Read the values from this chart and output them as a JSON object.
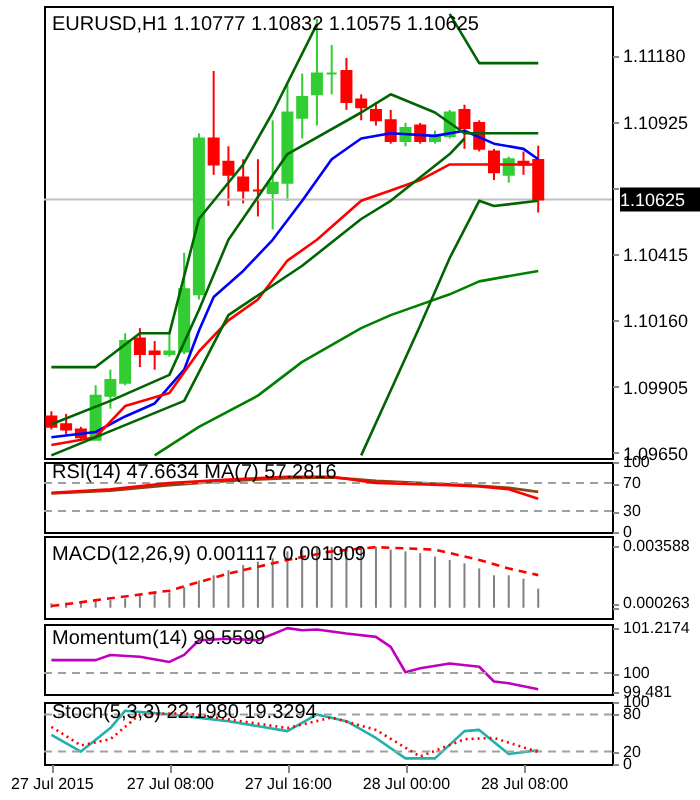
{
  "chart_data": [
    {
      "type": "candlestick",
      "title": "EURUSD,H1  1.10777 1.10832 1.10575 1.10625",
      "x": [
        "2015-07-27T00:00",
        "2015-07-27T01:00",
        "2015-07-27T02:00",
        "2015-07-27T03:00",
        "2015-07-27T04:00",
        "2015-07-27T05:00",
        "2015-07-27T06:00",
        "2015-07-27T07:00",
        "2015-07-27T08:00",
        "2015-07-27T09:00",
        "2015-07-27T10:00",
        "2015-07-27T11:00",
        "2015-07-27T12:00",
        "2015-07-27T13:00",
        "2015-07-27T14:00",
        "2015-07-27T15:00",
        "2015-07-27T16:00",
        "2015-07-27T17:00",
        "2015-07-27T18:00",
        "2015-07-27T19:00",
        "2015-07-27T20:00",
        "2015-07-27T21:00",
        "2015-07-27T22:00",
        "2015-07-27T23:00",
        "2015-07-28T00:00",
        "2015-07-28T01:00",
        "2015-07-28T02:00",
        "2015-07-28T03:00",
        "2015-07-28T04:00",
        "2015-07-28T05:00",
        "2015-07-28T06:00",
        "2015-07-28T07:00",
        "2015-07-28T08:00",
        "2015-07-28T09:00"
      ],
      "ohlc": [
        [
          1.0979,
          1.0981,
          1.0974,
          1.0975
        ],
        [
          1.0976,
          1.098,
          1.0972,
          1.0974
        ],
        [
          1.0974,
          1.0975,
          1.097,
          1.0971
        ],
        [
          1.097,
          1.0991,
          1.097,
          1.0987
        ],
        [
          1.0987,
          1.0997,
          1.0982,
          1.0993
        ],
        [
          1.0992,
          1.1011,
          1.0991,
          1.1008
        ],
        [
          1.1009,
          1.1013,
          1.0998,
          1.1003
        ],
        [
          1.1004,
          1.1008,
          1.0997,
          1.1003
        ],
        [
          1.1003,
          1.1011,
          1.1002,
          1.1004
        ],
        [
          1.1004,
          1.1042,
          1.1003,
          1.1028
        ],
        [
          1.1026,
          1.1088,
          1.1024,
          1.1086
        ],
        [
          1.1086,
          1.1112,
          1.1072,
          1.1076
        ],
        [
          1.1077,
          1.1083,
          1.106,
          1.1072
        ],
        [
          1.1071,
          1.1078,
          1.1061,
          1.1066
        ],
        [
          1.1066,
          1.1078,
          1.1056,
          1.1066
        ],
        [
          1.1065,
          1.1093,
          1.1051,
          1.1069
        ],
        [
          1.1069,
          1.1107,
          1.1062,
          1.1096
        ],
        [
          1.1094,
          1.1111,
          1.1086,
          1.1102
        ],
        [
          1.1103,
          1.1132,
          1.1091,
          1.1111
        ],
        [
          1.1111,
          1.1122,
          1.1103,
          1.1111
        ],
        [
          1.1112,
          1.1117,
          1.1097,
          1.11
        ],
        [
          1.1101,
          1.1103,
          1.1093,
          1.1098
        ],
        [
          1.1097,
          1.11,
          1.1091,
          1.1093
        ],
        [
          1.1093,
          1.1097,
          1.1084,
          1.1085
        ],
        [
          1.1085,
          1.1092,
          1.1083,
          1.109
        ],
        [
          1.1091,
          1.1092,
          1.1084,
          1.1085
        ],
        [
          1.1085,
          1.1089,
          1.1084,
          1.1087
        ],
        [
          1.1087,
          1.1097,
          1.1086,
          1.1096
        ],
        [
          1.1097,
          1.1099,
          1.1082,
          1.109
        ],
        [
          1.1092,
          1.1093,
          1.1081,
          1.1082
        ],
        [
          1.1081,
          1.1082,
          1.107,
          1.1073
        ],
        [
          1.1072,
          1.1079,
          1.1069,
          1.1078
        ],
        [
          1.1077,
          1.1081,
          1.1072,
          1.1076
        ],
        [
          1.10777,
          1.10832,
          1.10575,
          1.10625
        ]
      ],
      "colors": [
        "#ff0000",
        "#ff0000",
        "#ff0000",
        "#32cd32",
        "#32cd32",
        "#32cd32",
        "#ff0000",
        "#ff0000",
        "#32cd32",
        "#32cd32",
        "#32cd32",
        "#ff0000",
        "#ff0000",
        "#ff0000",
        "#ff0000",
        "#32cd32",
        "#32cd32",
        "#32cd32",
        "#32cd32",
        "#32cd32",
        "#ff0000",
        "#ff0000",
        "#ff0000",
        "#ff0000",
        "#32cd32",
        "#ff0000",
        "#32cd32",
        "#32cd32",
        "#ff0000",
        "#ff0000",
        "#ff0000",
        "#32cd32",
        "#ff0000",
        "#ff0000"
      ],
      "series": [
        {
          "type": "line",
          "color": "#0000ff",
          "x": [
            "2015-07-27T00:00",
            "2015-07-27T03:00",
            "2015-07-27T05:00",
            "2015-07-27T07:00",
            "2015-07-27T09:00",
            "2015-07-27T10:00",
            "2015-07-27T11:00",
            "2015-07-27T13:00",
            "2015-07-27T15:00",
            "2015-07-27T17:00",
            "2015-07-27T19:00",
            "2015-07-27T21:00",
            "2015-07-27T23:00",
            "2015-07-28T02:00",
            "2015-07-28T04:00",
            "2015-07-28T06:00",
            "2015-07-28T08:00",
            "2015-07-28T09:00"
          ],
          "values": [
            1.0971,
            1.0973,
            1.0979,
            1.0984,
            1.0997,
            1.1012,
            1.1025,
            1.1035,
            1.1047,
            1.1062,
            1.1078,
            1.1086,
            1.1088,
            1.1087,
            1.1089,
            1.1084,
            1.1082,
            1.1078
          ]
        },
        {
          "type": "line",
          "color": "#ff0000",
          "x": [
            "2015-07-27T00:00",
            "2015-07-27T03:00",
            "2015-07-27T05:00",
            "2015-07-27T08:00",
            "2015-07-27T10:00",
            "2015-07-27T12:00",
            "2015-07-27T14:00",
            "2015-07-27T16:00",
            "2015-07-27T18:00",
            "2015-07-27T21:00",
            "2015-07-27T23:00",
            "2015-07-28T01:00",
            "2015-07-28T03:00",
            "2015-07-28T05:00",
            "2015-07-28T09:00"
          ],
          "values": [
            1.0968,
            1.0971,
            1.0983,
            1.0988,
            1.1004,
            1.1016,
            1.1024,
            1.1039,
            1.1047,
            1.1062,
            1.1066,
            1.107,
            1.1076,
            1.1076,
            1.1076
          ]
        },
        {
          "type": "line",
          "color": "#008000",
          "x": [
            "2015-07-27T07:00",
            "2015-07-27T10:00",
            "2015-07-27T14:00",
            "2015-07-27T17:00",
            "2015-07-27T21:00",
            "2015-07-27T23:00",
            "2015-07-28T03:00",
            "2015-07-28T05:00",
            "2015-07-28T09:00"
          ],
          "values": [
            1.0964,
            1.0975,
            1.0987,
            1.1,
            1.1013,
            1.1018,
            1.1026,
            1.1031,
            1.1035
          ]
        },
        {
          "type": "line",
          "color": "#006400",
          "x": [
            "2015-07-27T00:00",
            "2015-07-27T03:00",
            "2015-07-27T06:00",
            "2015-07-27T08:00",
            "2015-07-27T10:00",
            "2015-07-27T13:00",
            "2015-07-27T15:00",
            "2015-07-27T18:00"
          ],
          "values": [
            1.0998,
            1.0998,
            1.1011,
            1.1011,
            1.1055,
            1.1076,
            1.1096,
            1.113
          ]
        },
        {
          "type": "line",
          "color": "#006400",
          "x": [
            "2015-07-28T03:00",
            "2015-07-28T05:00",
            "2015-07-28T09:00"
          ],
          "values": [
            1.1134,
            1.1115,
            1.1115
          ]
        },
        {
          "type": "line",
          "color": "#006400",
          "x": [
            "2015-07-27T21:00",
            "2015-07-27T23:00",
            "2015-07-28T01:00",
            "2015-07-28T03:00",
            "2015-07-28T05:00",
            "2015-07-28T06:00",
            "2015-07-28T09:00"
          ],
          "values": [
            1.0964,
            1.0989,
            1.1014,
            1.104,
            1.1062,
            1.106,
            1.1062
          ]
        },
        {
          "type": "line",
          "color": "#006400",
          "x": [
            "2015-07-27T00:00",
            "2015-07-27T04:00",
            "2015-07-27T08:00",
            "2015-07-27T10:00",
            "2015-07-27T12:00",
            "2015-07-27T16:00",
            "2015-07-27T21:00",
            "2015-07-27T23:00",
            "2015-07-28T02:00",
            "2015-07-28T04:00",
            "2015-07-28T09:00"
          ],
          "values": [
            1.0976,
            1.0985,
            1.0995,
            1.102,
            1.1047,
            1.108,
            1.1096,
            1.1103,
            1.1096,
            1.1088,
            1.1088
          ]
        },
        {
          "type": "line",
          "color": "#006400",
          "x": [
            "2015-07-27T00:00",
            "2015-07-27T09:00",
            "2015-07-27T12:00",
            "2015-07-27T17:00",
            "2015-07-27T21:00",
            "2015-07-27T23:00",
            "2015-07-28T03:00",
            "2015-07-28T04:00"
          ],
          "values": [
            1.0964,
            1.0985,
            1.1018,
            1.1037,
            1.1055,
            1.1062,
            1.108,
            1.1086
          ]
        }
      ],
      "ref_lines": [
        {
          "axis": "y",
          "value": 1.10625,
          "label": "1.10625",
          "color": "#c0c0c0"
        }
      ],
      "xlim": [
        "2015-07-26T23:30",
        "2015-07-28T14:00"
      ],
      "ylim": [
        1.0963,
        1.1137
      ],
      "yticks": [
        {
          "value": 1.0965,
          "label": "1.09650"
        },
        {
          "value": 1.09905,
          "label": "1.09905"
        },
        {
          "value": 1.1016,
          "label": "1.10160"
        },
        {
          "value": 1.10415,
          "label": "1.10415"
        },
        {
          "value": 1.1067,
          "label": null
        },
        {
          "value": 1.10925,
          "label": "1.10925"
        },
        {
          "value": 1.1118,
          "label": "1.11180"
        }
      ],
      "tick_labels": "y"
    },
    {
      "type": "line",
      "title": "RSI(14) 47.6634 MA(7) 57.2816",
      "series": [
        {
          "color": "#8b4513",
          "x": [
            "2015-07-27T00:00",
            "2015-07-27T04:00",
            "2015-07-27T08:00",
            "2015-07-27T12:00",
            "2015-07-27T16:00",
            "2015-07-27T19:00",
            "2015-07-27T22:00",
            "2015-07-28T03:00",
            "2015-07-28T05:00",
            "2015-07-28T07:00",
            "2015-07-28T09:00"
          ],
          "values": [
            55,
            59,
            67,
            73,
            77,
            78,
            73,
            68,
            66,
            63,
            57.2816
          ]
        },
        {
          "color": "#ff0000",
          "x": [
            "2015-07-27T00:00",
            "2015-07-27T04:00",
            "2015-07-27T08:00",
            "2015-07-27T12:00",
            "2015-07-27T16:00",
            "2015-07-27T19:00",
            "2015-07-27T22:00",
            "2015-07-28T03:00",
            "2015-07-28T05:00",
            "2015-07-28T07:00",
            "2015-07-28T09:00"
          ],
          "values": [
            56,
            61,
            70,
            75,
            79,
            79,
            70,
            67,
            65,
            61,
            47.6634
          ]
        }
      ],
      "ref_lines": [
        {
          "axis": "y",
          "value": 70,
          "color": "#a0a0a0",
          "line_style": "dashed"
        },
        {
          "axis": "y",
          "value": 30,
          "color": "#a0a0a0",
          "line_style": "dashed"
        }
      ],
      "xlim": [
        "2015-07-26T23:30",
        "2015-07-28T14:00"
      ],
      "ylim": [
        0,
        100
      ],
      "yticks": [
        100,
        70,
        30,
        0
      ],
      "tick_labels": "y"
    },
    {
      "type": "bar",
      "title": "MACD(12,26,9) 0.001117 0.001909",
      "color": "#808080",
      "x": [
        "2015-07-27T00:00",
        "2015-07-27T01:00",
        "2015-07-27T02:00",
        "2015-07-27T03:00",
        "2015-07-27T04:00",
        "2015-07-27T05:00",
        "2015-07-27T06:00",
        "2015-07-27T07:00",
        "2015-07-27T08:00",
        "2015-07-27T09:00",
        "2015-07-27T10:00",
        "2015-07-27T11:00",
        "2015-07-27T12:00",
        "2015-07-27T13:00",
        "2015-07-27T14:00",
        "2015-07-27T15:00",
        "2015-07-27T16:00",
        "2015-07-27T17:00",
        "2015-07-27T18:00",
        "2015-07-27T19:00",
        "2015-07-27T20:00",
        "2015-07-27T21:00",
        "2015-07-27T22:00",
        "2015-07-27T23:00",
        "2015-07-28T00:00",
        "2015-07-28T01:00",
        "2015-07-28T02:00",
        "2015-07-28T03:00",
        "2015-07-28T04:00",
        "2015-07-28T05:00",
        "2015-07-28T06:00",
        "2015-07-28T07:00",
        "2015-07-28T08:00",
        "2015-07-28T09:00"
      ],
      "values": [
        0.000263,
        0.0003,
        0.00035,
        0.0004,
        0.00045,
        0.00055,
        0.0007,
        0.0008,
        0.0009,
        0.0012,
        0.0016,
        0.0019,
        0.0022,
        0.0025,
        0.0027,
        0.0029,
        0.0033,
        0.0034,
        0.0035,
        0.00356,
        0.00358,
        0.003588,
        0.00357,
        0.0034,
        0.0033,
        0.0032,
        0.003,
        0.0028,
        0.0026,
        0.0023,
        0.0019,
        0.0019,
        0.0017,
        0.001117
      ],
      "series": [
        {
          "type": "line",
          "color": "#ff0000",
          "line_style": "dashed",
          "x": [
            "2015-07-27T00:00",
            "2015-07-27T08:00",
            "2015-07-27T12:00",
            "2015-07-27T16:00",
            "2015-07-27T19:00",
            "2015-07-27T22:00",
            "2015-07-28T02:00",
            "2015-07-28T05:00",
            "2015-07-28T07:00",
            "2015-07-28T09:00"
          ],
          "values": [
            0.0001,
            0.001,
            0.002,
            0.0028,
            0.0033,
            0.00355,
            0.0034,
            0.0028,
            0.0023,
            0.001909
          ]
        }
      ],
      "xlim": [
        "2015-07-26T23:30",
        "2015-07-28T14:00"
      ],
      "ylim": [
        -0.0006,
        0.0042
      ],
      "yticks": [
        0.003588,
        0.000263,
        {
          "value": 0,
          "label": null
        }
      ],
      "tick_labels": "y"
    },
    {
      "type": "line",
      "title": "Momentum(14) 99.5599",
      "series": [
        {
          "color": "#c000c0",
          "x": [
            "2015-07-27T00:00",
            "2015-07-27T03:00",
            "2015-07-27T04:00",
            "2015-07-27T06:00",
            "2015-07-27T08:00",
            "2015-07-27T09:00",
            "2015-07-27T10:00",
            "2015-07-27T12:00",
            "2015-07-27T14:00",
            "2015-07-27T16:00",
            "2015-07-27T17:00",
            "2015-07-27T18:00",
            "2015-07-27T20:00",
            "2015-07-27T22:00",
            "2015-07-27T23:00",
            "2015-07-28T00:00",
            "2015-07-28T01:00",
            "2015-07-28T03:00",
            "2015-07-28T05:00",
            "2015-07-28T06:00",
            "2015-07-28T07:00",
            "2015-07-28T09:00"
          ],
          "values": [
            100.35,
            100.35,
            100.49,
            100.44,
            100.3,
            100.49,
            100.89,
            100.93,
            100.89,
            101.2174,
            101.16,
            101.18,
            101.07,
            100.98,
            100.71,
            100.02,
            100.13,
            100.26,
            100.17,
            99.77,
            99.72,
            99.5599
          ]
        }
      ],
      "ref_lines": [
        {
          "axis": "y",
          "value": 100,
          "color": "#a0a0a0",
          "line_style": "dashed"
        }
      ],
      "xlim": [
        "2015-07-26T23:30",
        "2015-07-28T14:00"
      ],
      "ylim": [
        99.43,
        101.33
      ],
      "yticks": [
        101.2174,
        100,
        99.481
      ],
      "tick_labels": "y"
    },
    {
      "type": "line",
      "title": "Stoch(5,3,3) 22.1980 19.3294",
      "series": [
        {
          "color": "#20b2aa",
          "x": [
            "2015-07-27T00:00",
            "2015-07-27T02:00",
            "2015-07-27T04:00",
            "2015-07-27T05:00",
            "2015-07-27T08:00",
            "2015-07-27T12:00",
            "2015-07-27T16:00",
            "2015-07-27T18:00",
            "2015-07-27T20:00",
            "2015-07-27T22:00",
            "2015-07-28T00:00",
            "2015-07-28T02:00",
            "2015-07-28T04:00",
            "2015-07-28T05:00",
            "2015-07-28T07:00",
            "2015-07-28T09:00"
          ],
          "values": [
            47,
            20,
            58,
            86,
            80,
            69,
            53,
            80,
            69,
            42,
            9,
            9,
            53,
            55,
            16,
            22.198
          ]
        },
        {
          "color": "#ff0000",
          "line_style": "dotted",
          "x": [
            "2015-07-27T00:00",
            "2015-07-27T02:00",
            "2015-07-27T04:00",
            "2015-07-27T06:00",
            "2015-07-27T09:00",
            "2015-07-27T12:00",
            "2015-07-27T16:00",
            "2015-07-27T19:00",
            "2015-07-27T22:00",
            "2015-07-28T01:00",
            "2015-07-28T04:00",
            "2015-07-28T06:00",
            "2015-07-28T09:00"
          ],
          "values": [
            60,
            30,
            40,
            80,
            82,
            72,
            58,
            75,
            55,
            12,
            40,
            42,
            19.3294
          ]
        }
      ],
      "ref_lines": [
        {
          "axis": "y",
          "value": 80,
          "color": "#a0a0a0",
          "line_style": "dashed"
        },
        {
          "axis": "y",
          "value": 20,
          "color": "#a0a0a0",
          "line_style": "dashed"
        }
      ],
      "xlim": [
        "2015-07-26T23:30",
        "2015-07-28T14:00"
      ],
      "ylim": [
        0,
        100
      ],
      "yticks": [
        100,
        80,
        20,
        0
      ],
      "xticks": [
        {
          "value": "2015-07-27T00:00",
          "label": "27 Jul 2015"
        },
        {
          "value": "2015-07-27T08:00",
          "label": "27 Jul 08:00"
        },
        {
          "value": "2015-07-27T16:00",
          "label": "27 Jul 16:00"
        },
        {
          "value": "2015-07-28T00:00",
          "label": "28 Jul 00:00"
        },
        {
          "value": "2015-07-28T08:00",
          "label": "28 Jul 08:00"
        }
      ]
    }
  ]
}
